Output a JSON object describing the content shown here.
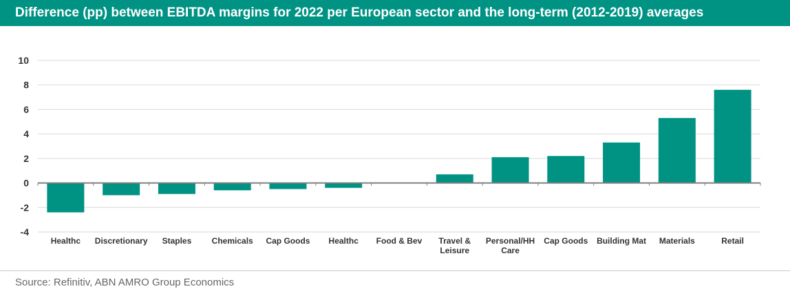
{
  "chart_data": {
    "type": "bar",
    "title": "Difference (pp) between EBITDA margins for 2022 per European sector and the long-term (2012-2019) averages",
    "source": "Source: Refinitiv, ABN AMRO Group Economics",
    "categories": [
      [
        "Healthc"
      ],
      [
        "Discretionary"
      ],
      [
        "Staples"
      ],
      [
        "Chemicals"
      ],
      [
        "Cap Goods"
      ],
      [
        "Healthc"
      ],
      [
        "Food & Bev"
      ],
      [
        "Travel &",
        "Leisure"
      ],
      [
        "Personal/HH",
        "Care"
      ],
      [
        "Cap Goods"
      ],
      [
        "Building Mat"
      ],
      [
        "Materials"
      ],
      [
        "Retail"
      ]
    ],
    "values": [
      -2.4,
      -1.0,
      -0.9,
      -0.6,
      -0.5,
      -0.4,
      0.0,
      0.7,
      2.1,
      2.2,
      3.3,
      5.3,
      7.6
    ],
    "yticks": [
      -4,
      -2,
      0,
      2,
      4,
      6,
      8,
      10
    ],
    "ylim": [
      -4,
      10
    ],
    "grid": true,
    "bar_color": "#009384",
    "title_bar_color": "#009384"
  }
}
